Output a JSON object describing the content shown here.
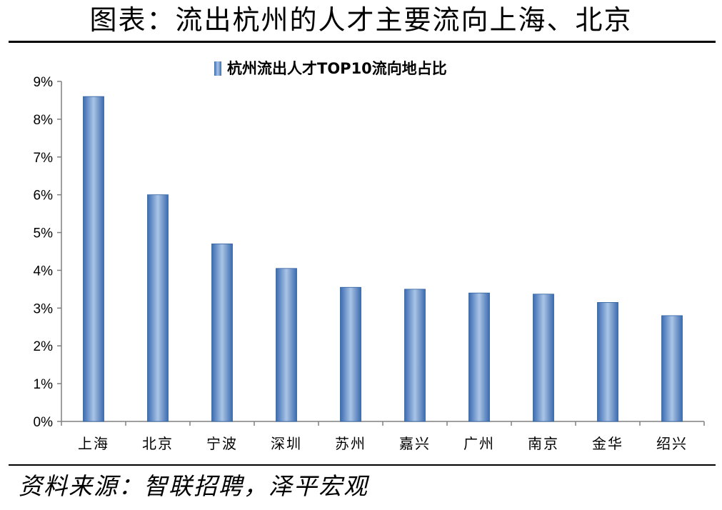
{
  "header": {
    "title": "图表：流出杭州的人才主要流向上海、北京"
  },
  "footer": {
    "source": "资料来源：智联招聘，泽平宏观"
  },
  "chart_data": {
    "type": "bar",
    "title": "杭州流出人才TOP10流向地占比",
    "legend": {
      "placement": "top-center",
      "entries": [
        "杭州流出人才TOP10流向地占比"
      ]
    },
    "categories": [
      "上海",
      "北京",
      "宁波",
      "深圳",
      "苏州",
      "嘉兴",
      "广州",
      "南京",
      "金华",
      "绍兴"
    ],
    "series": [
      {
        "name": "杭州流出人才TOP10流向地占比",
        "values": [
          8.6,
          6.0,
          4.7,
          4.05,
          3.55,
          3.5,
          3.4,
          3.37,
          3.15,
          2.8
        ]
      }
    ],
    "unit": "%",
    "ylim": [
      0,
      9
    ],
    "yticks": [
      0,
      1,
      2,
      3,
      4,
      5,
      6,
      7,
      8,
      9
    ],
    "ytick_labels": [
      "0%",
      "1%",
      "2%",
      "3%",
      "4%",
      "5%",
      "6%",
      "7%",
      "8%",
      "9%"
    ],
    "grid": false,
    "colors": {
      "bar_edge": "#2f5f9e",
      "bar_center": "#aac4e6",
      "bar_dark": "#3a6cb0",
      "axis": "#808080"
    }
  }
}
